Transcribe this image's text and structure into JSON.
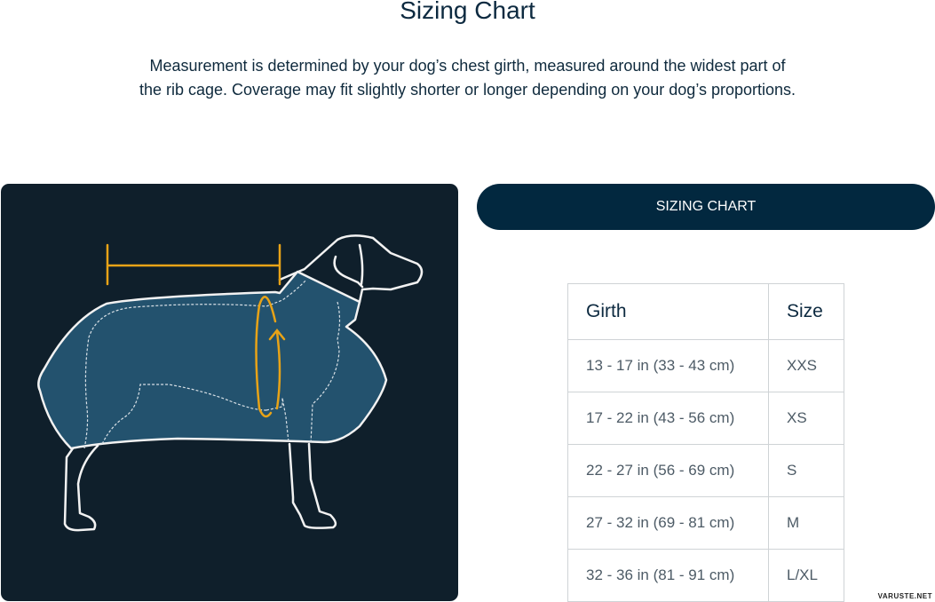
{
  "header": {
    "title": "Sizing Chart",
    "description_line1": "Measurement is determined by your dog’s chest girth, measured around the widest part of",
    "description_line2": "the rib cage. Coverage may fit slightly shorter or longer depending on your dog’s proportions."
  },
  "illustration": {
    "icon": "dog-coat-measurement-illustration",
    "background": "#0f1f2b",
    "coat_color": "#23526e",
    "accent": "#e8a317"
  },
  "button": {
    "label": "SIZING CHART",
    "color": "#02283f"
  },
  "table": {
    "headers": [
      "Girth",
      "Size"
    ],
    "rows": [
      [
        "13 - 17 in (33 - 43 cm)",
        "XXS"
      ],
      [
        "17 - 22 in (43 - 56 cm)",
        "XS"
      ],
      [
        "22 - 27 in (56 - 69 cm)",
        "S"
      ],
      [
        "27 - 32 in (69 - 81 cm)",
        "M"
      ],
      [
        "32 - 36 in (81 - 91 cm)",
        "L/XL"
      ]
    ]
  },
  "watermark": "VARUSTE.NET"
}
